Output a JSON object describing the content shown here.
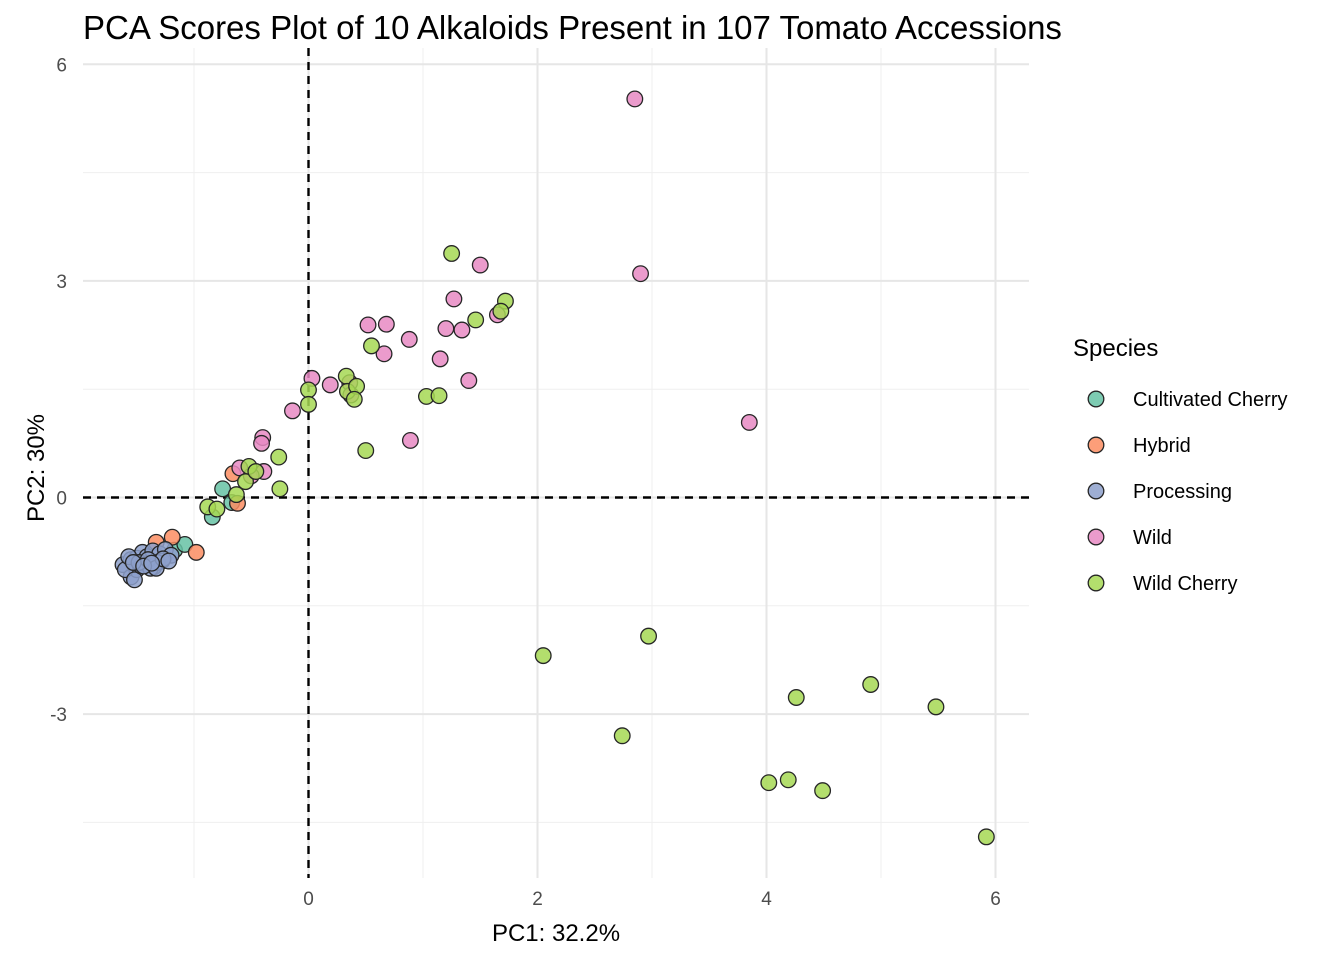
{
  "chart_data": {
    "type": "scatter",
    "title": "PCA Scores Plot of 10 Alkaloids Present in 107 Tomato Accessions",
    "xlabel": "PC1: 32.2%",
    "ylabel": "PC2: 30%",
    "xlim": [
      -1.95,
      6.3
    ],
    "ylim": [
      -5.25,
      6.2
    ],
    "x_ticks": [
      0,
      2,
      4,
      6
    ],
    "y_ticks": [
      -3,
      0,
      3,
      6
    ],
    "x_tick_labels": [
      "0",
      "2",
      "4",
      "6"
    ],
    "y_tick_labels": [
      "-3",
      "0",
      "3",
      "6"
    ],
    "grid": true,
    "legend": {
      "title": "Species",
      "position": "right"
    },
    "reference_lines": {
      "x": 0,
      "y": 0,
      "style": "dashed"
    },
    "series": [
      {
        "name": "Cultivated Cherry",
        "color": "#66c2a5",
        "x": [
          -0.75,
          -0.84,
          -0.67,
          -1.17,
          -1.08
        ],
        "y": [
          0.12,
          -0.27,
          -0.07,
          -0.73,
          -0.65
        ]
      },
      {
        "name": "Hybrid",
        "color": "#fc8d62",
        "x": [
          -1.33,
          -1.19,
          -0.98,
          -0.66,
          -0.62
        ],
        "y": [
          -0.62,
          -0.55,
          -0.76,
          0.33,
          -0.08
        ]
      },
      {
        "name": "Processing",
        "color": "#8da0cb",
        "x": [
          -1.62,
          -1.55,
          -1.5,
          -1.45,
          -1.41,
          -1.36,
          -1.3,
          -1.25,
          -1.2,
          -1.55,
          -1.5,
          -1.42,
          -1.35,
          -1.28,
          -1.6,
          -1.52,
          -1.46,
          -1.38,
          -1.32,
          -1.57,
          -1.48,
          -1.4,
          -1.33,
          -1.27,
          -1.22,
          -1.53,
          -1.44,
          -1.37
        ],
        "y": [
          -0.93,
          -0.86,
          -0.84,
          -0.76,
          -0.82,
          -0.74,
          -0.78,
          -0.72,
          -0.8,
          -1.1,
          -1.0,
          -0.92,
          -0.96,
          -0.88,
          -1.0,
          -1.14,
          -0.95,
          -0.98,
          -0.9,
          -0.82,
          -0.9,
          -0.86,
          -0.98,
          -0.85,
          -0.88,
          -0.9,
          -0.95,
          -0.91
        ]
      },
      {
        "name": "Wild",
        "color": "#e78ac3",
        "x": [
          2.85,
          2.9,
          3.85,
          1.5,
          1.27,
          1.2,
          1.34,
          0.52,
          0.68,
          0.88,
          0.66,
          1.15,
          1.4,
          0.03,
          0.19,
          0.36,
          0.37,
          -0.14,
          0.89,
          -0.4,
          -0.41,
          -0.39,
          -0.6,
          -0.5,
          1.65
        ],
        "y": [
          5.52,
          3.1,
          1.04,
          3.22,
          2.75,
          2.34,
          2.32,
          2.39,
          2.4,
          2.19,
          1.99,
          1.92,
          1.62,
          1.65,
          1.56,
          1.59,
          1.42,
          1.2,
          0.79,
          0.83,
          0.75,
          0.36,
          0.41,
          0.3,
          2.53
        ]
      },
      {
        "name": "Wild Cherry",
        "color": "#a6d854",
        "x": [
          1.25,
          1.72,
          1.46,
          1.68,
          0.55,
          0.33,
          0.34,
          0.0,
          0.0,
          0.42,
          0.4,
          1.03,
          1.14,
          0.5,
          -0.26,
          -0.52,
          -0.88,
          -0.8,
          -0.63,
          -0.25,
          -0.55,
          2.05,
          2.97,
          2.74,
          4.26,
          4.91,
          5.48,
          4.02,
          4.19,
          4.49,
          5.92,
          -0.46
        ],
        "y": [
          3.38,
          2.72,
          2.46,
          2.58,
          2.1,
          1.68,
          1.47,
          1.49,
          1.29,
          1.54,
          1.36,
          1.4,
          1.41,
          0.65,
          0.56,
          0.43,
          -0.13,
          -0.16,
          0.04,
          0.12,
          0.22,
          -2.19,
          -1.92,
          -3.3,
          -2.77,
          -2.59,
          -2.9,
          -3.95,
          -3.91,
          -4.06,
          -4.7,
          0.36
        ]
      }
    ]
  }
}
